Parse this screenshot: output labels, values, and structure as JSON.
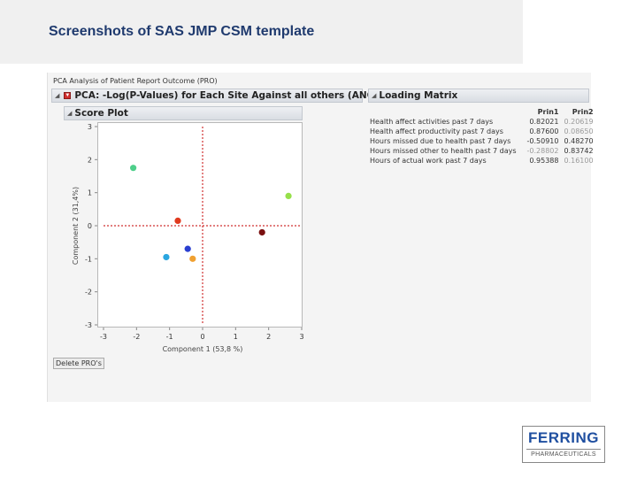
{
  "slide": {
    "title": "Screenshots of SAS JMP CSM template"
  },
  "report": {
    "window_title": "PCA Analysis of Patient Report Outcome (PRO)",
    "pca_outline_title": "PCA: -Log(P-Values) for Each Site Against all others (ANOVA)",
    "score_plot_title": "Score Plot",
    "loading_matrix_title": "Loading Matrix",
    "delete_button_label": "Delete PRO's"
  },
  "loading_matrix": {
    "columns": [
      "Prin1",
      "Prin2"
    ],
    "rows": [
      {
        "variable": "Health affect activities past 7 days",
        "prin1": "0.82021",
        "prin2": "0.20619"
      },
      {
        "variable": "Health affect productivity past 7 days",
        "prin1": "0.87600",
        "prin2": "0.08650"
      },
      {
        "variable": "Hours missed due to health past 7 days",
        "prin1": "-0.50910",
        "prin2": "0.48270"
      },
      {
        "variable": "Hours missed other to health past 7 days",
        "prin1": "-0.28802",
        "prin2": "0.83742"
      },
      {
        "variable": "Hours of actual work past 7 days",
        "prin1": "0.95388",
        "prin2": "0.16100"
      }
    ]
  },
  "chart_data": {
    "type": "scatter",
    "title": "Score Plot",
    "xlabel": "Component 1 (53,8 %)",
    "ylabel": "Component 2 (31,4%)",
    "xlim": [
      -3,
      3
    ],
    "ylim": [
      -3,
      3
    ],
    "x_ticks": [
      "-3",
      "-2",
      "-1",
      "0",
      "1",
      "2",
      "3"
    ],
    "y_ticks": [
      "-3",
      "-2",
      "-1",
      "0",
      "1",
      "2",
      "3"
    ],
    "reference_lines": {
      "x": 0,
      "y": 0,
      "color": "#d03030",
      "style": "dotted"
    },
    "points": [
      {
        "x": -2.1,
        "y": 1.75,
        "color": "#4ecf8a"
      },
      {
        "x": -0.75,
        "y": 0.15,
        "color": "#e03a1e"
      },
      {
        "x": -1.1,
        "y": -0.95,
        "color": "#2aa6e0"
      },
      {
        "x": -0.45,
        "y": -0.7,
        "color": "#2a3fd0"
      },
      {
        "x": -0.3,
        "y": -1.0,
        "color": "#f0a030"
      },
      {
        "x": 1.8,
        "y": -0.2,
        "color": "#7a1010"
      },
      {
        "x": 2.6,
        "y": 0.9,
        "color": "#96e04a"
      }
    ]
  },
  "logo": {
    "name": "FERRING",
    "subtitle": "PHARMACEUTICALS",
    "color": "#1f4fa0"
  }
}
